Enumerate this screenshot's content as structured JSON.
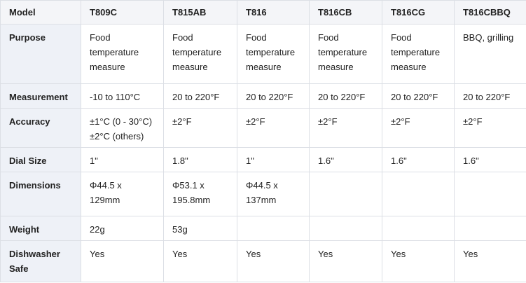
{
  "table": {
    "header": [
      "Model",
      "T809C",
      "T815AB",
      "T816",
      "T816CB",
      "T816CG",
      "T816CBBQ"
    ],
    "rows": [
      [
        "Purpose",
        "Food temperature measure",
        "Food temperature measure",
        "Food temperature measure",
        "Food temperature measure",
        "Food temperature measure",
        "BBQ, grilling"
      ],
      [
        "Measurement",
        "-10 to 110°C",
        "20 to 220°F",
        "20 to 220°F",
        "20 to 220°F",
        "20 to 220°F",
        "20 to 220°F"
      ],
      [
        "Accuracy",
        [
          "±1°C (0 - 30°C)",
          "±2°C (others)"
        ],
        "±2°F",
        "±2°F",
        "±2°F",
        "±2°F",
        "±2°F"
      ],
      [
        "Dial Size",
        "1\"",
        "1.8\"",
        "1\"",
        "1.6\"",
        "1.6\"",
        "1.6\""
      ],
      [
        "Dimensions",
        "Φ44.5 x 129mm",
        "Φ53.1 x 195.8mm",
        "Φ44.5 x 137mm",
        null,
        null,
        null
      ],
      [
        "Weight",
        "22g",
        "53g",
        null,
        null,
        null,
        null
      ],
      [
        "Dishwasher Safe",
        "Yes",
        "Yes",
        "Yes",
        "Yes",
        "Yes",
        "Yes"
      ]
    ]
  }
}
